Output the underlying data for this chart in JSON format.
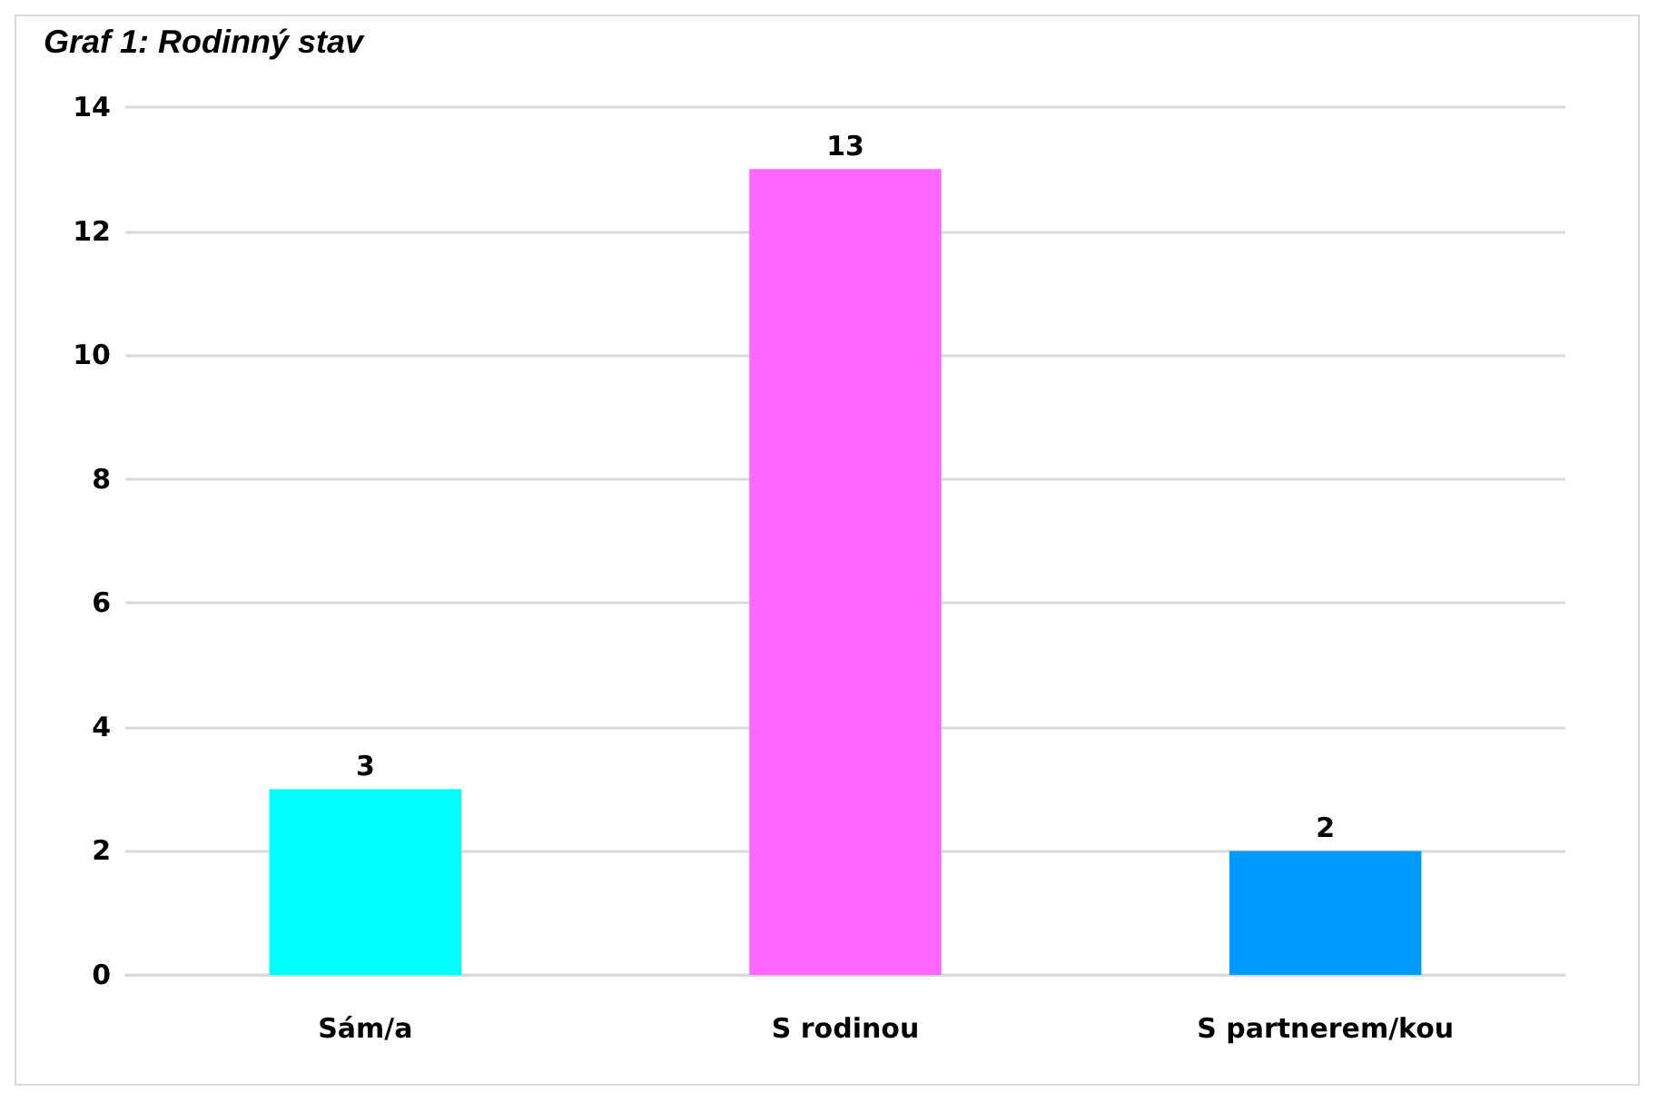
{
  "chart_data": {
    "type": "bar",
    "title": "Graf 1: Rodinný stav",
    "categories": [
      "Sám/a",
      "S rodinou",
      "S partnerem/kou"
    ],
    "values": [
      3,
      13,
      2
    ],
    "colors": [
      "#00ffff",
      "#ff66ff",
      "#0099ff"
    ],
    "ylim": [
      0,
      14
    ],
    "yticks": [
      0,
      2,
      4,
      6,
      8,
      10,
      12,
      14
    ],
    "grid": "y",
    "data_labels": true
  }
}
